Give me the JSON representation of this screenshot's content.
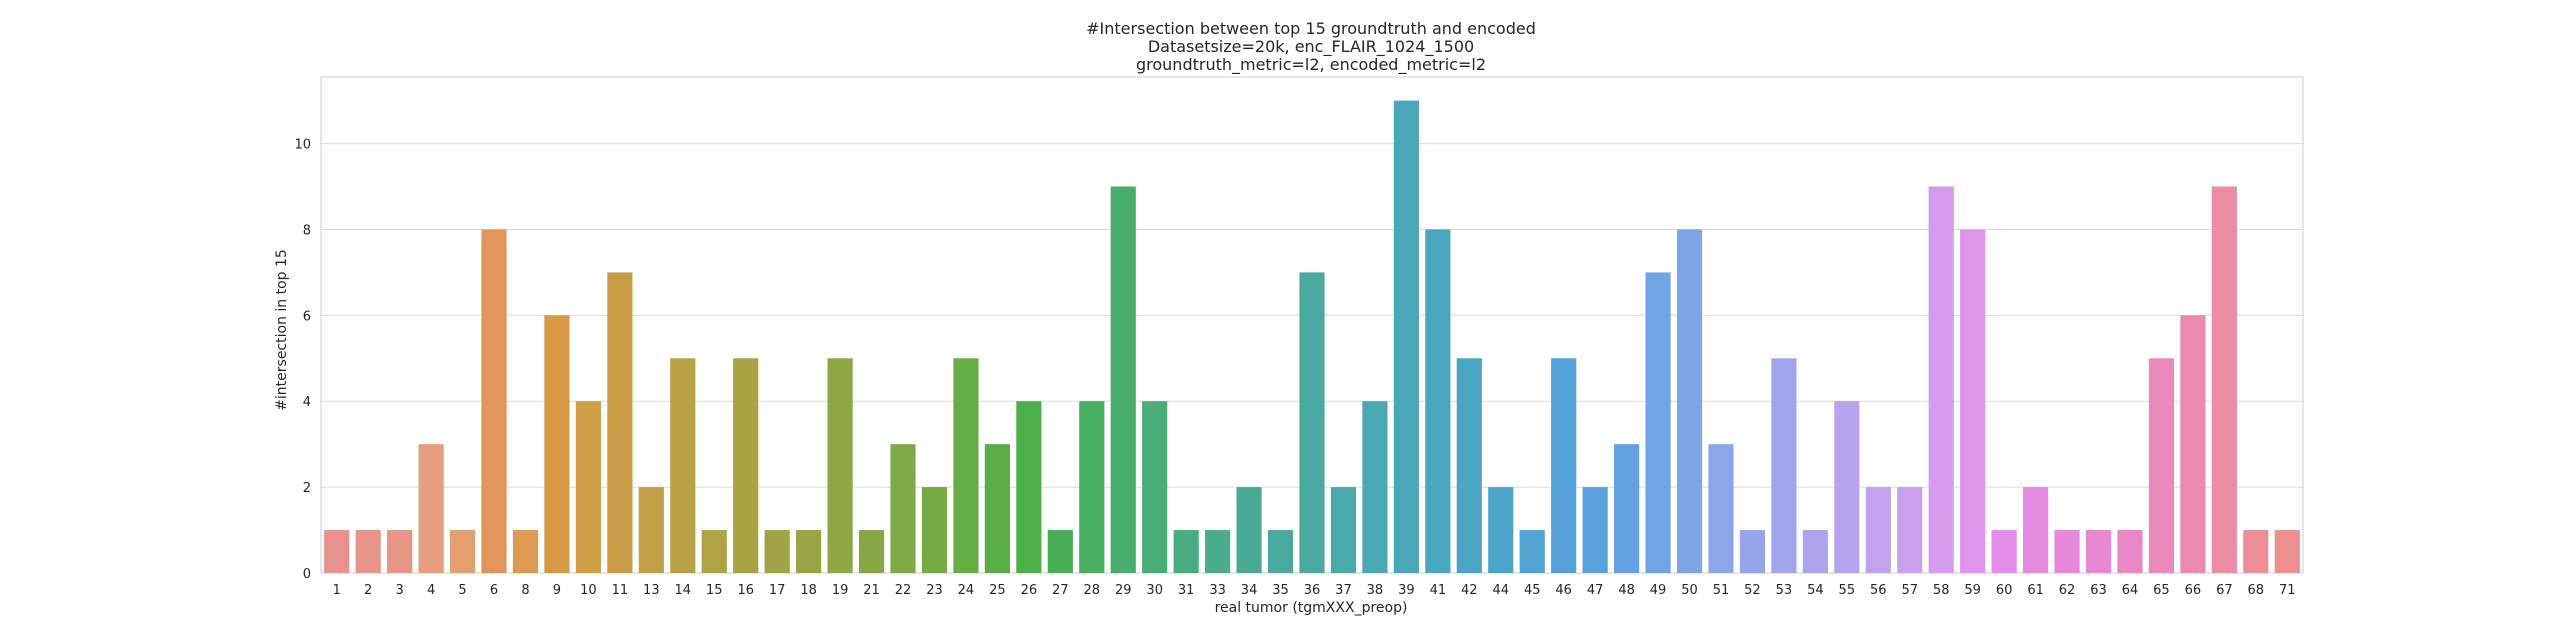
{
  "chart_data": {
    "type": "bar",
    "title_lines": [
      "#Intersection between top 15 groundtruth and encoded",
      "Datasetsize=20k, enc_FLAIR_1024_1500",
      "groundtruth_metric=l2, encoded_metric=l2"
    ],
    "xlabel": "real tumor (tgmXXX_preop)",
    "ylabel": "#intersection in top 15",
    "ylim": [
      0,
      11.55
    ],
    "yticks": [
      "0",
      "2",
      "4",
      "6",
      "8",
      "10"
    ],
    "grid": true,
    "categories": [
      "1",
      "2",
      "3",
      "4",
      "5",
      "6",
      "8",
      "9",
      "10",
      "11",
      "13",
      "14",
      "15",
      "16",
      "17",
      "18",
      "19",
      "21",
      "22",
      "23",
      "24",
      "25",
      "26",
      "27",
      "28",
      "29",
      "30",
      "31",
      "33",
      "34",
      "35",
      "36",
      "37",
      "38",
      "39",
      "41",
      "42",
      "44",
      "45",
      "46",
      "47",
      "48",
      "49",
      "50",
      "51",
      "52",
      "53",
      "54",
      "55",
      "56",
      "57",
      "58",
      "59",
      "60",
      "61",
      "62",
      "63",
      "64",
      "65",
      "66",
      "67",
      "68",
      "71"
    ],
    "values": [
      1,
      1,
      1,
      3,
      1,
      8,
      1,
      6,
      4,
      7,
      2,
      5,
      1,
      5,
      1,
      1,
      5,
      1,
      3,
      2,
      5,
      3,
      4,
      1,
      4,
      9,
      4,
      1,
      1,
      2,
      1,
      7,
      2,
      4,
      11,
      8,
      5,
      2,
      1,
      5,
      2,
      3,
      7,
      8,
      3,
      1,
      5,
      1,
      4,
      2,
      2,
      9,
      8,
      1,
      2,
      1,
      1,
      1,
      5,
      6,
      9,
      1,
      1
    ],
    "colors": [
      "#e8928f",
      "#e8938a",
      "#e79685",
      "#e69f7e",
      "#e39f6e",
      "#e2955a",
      "#dd9a52",
      "#d69a47",
      "#cf9e47",
      "#c89d45",
      "#c2a048",
      "#b9a245",
      "#b0a246",
      "#a8a345",
      "#a0a444",
      "#97a543",
      "#8fa645",
      "#87a745",
      "#7ea946",
      "#74ab45",
      "#67ad45",
      "#5aae46",
      "#4eb04a",
      "#48ae56",
      "#48ae62",
      "#48ae6d",
      "#49ad79",
      "#49ad83",
      "#49ac8c",
      "#49ab95",
      "#49aa9d",
      "#49aaa4",
      "#49a9ab",
      "#49a8b1",
      "#49a7b8",
      "#49a6bf",
      "#4ba5c5",
      "#4da4cb",
      "#51a3d1",
      "#55a2d8",
      "#5ba1de",
      "#65a0e1",
      "#70a4e3",
      "#7ea5e6",
      "#8aa5e8",
      "#96a5e9",
      "#a1a5eb",
      "#aca5ec",
      "#b7a4ed",
      "#c1a2ed",
      "#caa0ed",
      "#d49bec",
      "#dd95eb",
      "#e38ee8",
      "#e58ae1",
      "#e688d9",
      "#e787cf",
      "#e887c5",
      "#e989bb",
      "#ea8aaf",
      "#ea8ca3",
      "#eb8e98",
      "#ec8f8f"
    ]
  }
}
